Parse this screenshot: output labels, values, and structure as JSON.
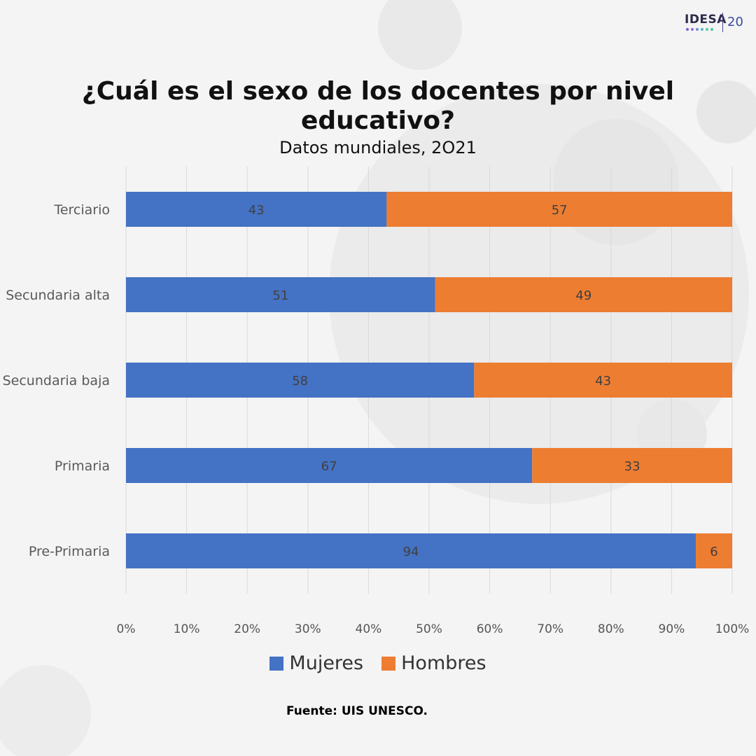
{
  "header": {
    "title": "¿Cuál es el sexo de los docentes por nivel educativo?",
    "subtitle": "Datos mundiales, 2O21",
    "logo_text": "IDESA",
    "logo_number": "20"
  },
  "footer": {
    "source": "Fuente: UIS UNESCO."
  },
  "colors": {
    "mujeres": "#4472c4",
    "hombres": "#ed7d31",
    "grid": "#d9d9d9",
    "background": "#f4f4f4",
    "logo_dots": [
      "#7b5fc9",
      "#8e6fd6",
      "#6a8fd8",
      "#5bb7c9",
      "#56c9a8",
      "#4fc98e"
    ]
  },
  "chart_data": {
    "type": "bar",
    "orientation": "horizontal",
    "stacked": "percent",
    "title": "¿Cuál es el sexo de los docentes por nivel educativo?",
    "subtitle": "Datos mundiales, 2O21",
    "categories": [
      "Terciario",
      "Secundaria alta",
      "Secundaria baja",
      "Primaria",
      "Pre-Primaria"
    ],
    "series": [
      {
        "name": "Mujeres",
        "values": [
          43,
          51,
          58,
          67,
          94
        ],
        "labels": [
          "43",
          "51",
          "58",
          "67",
          "94"
        ]
      },
      {
        "name": "Hombres",
        "values": [
          57,
          49,
          43,
          33,
          6
        ],
        "labels": [
          "57",
          "49",
          "43",
          "33",
          "6"
        ]
      }
    ],
    "xlim": [
      0,
      100
    ],
    "xticks": [
      "0%",
      "10%",
      "20%",
      "30%",
      "40%",
      "50%",
      "60%",
      "70%",
      "80%",
      "90%",
      "100%"
    ],
    "grid": true,
    "legend": "bottom"
  }
}
